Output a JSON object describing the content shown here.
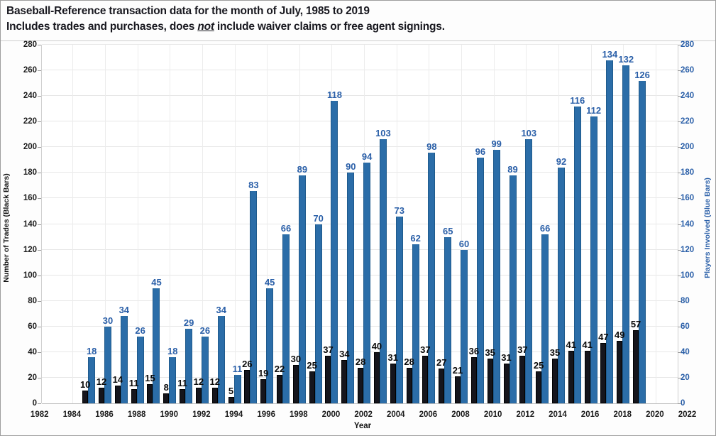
{
  "title": "Baseball-Reference transaction data for the month of July, 1985 to 2019",
  "subtitle": {
    "prefix": "Includes trades and purchases, does ",
    "emphasis": "not",
    "suffix": " include waiver claims or free agent signings."
  },
  "chart_data": {
    "type": "bar",
    "title": "Baseball-Reference transaction data for the month of July, 1985 to 2019",
    "subtitle": "Includes trades and purchases, does not include waiver claims or free agent signings.",
    "xlabel": "Year",
    "ylabel_left": "Number of Trades (Black Bars)",
    "ylabel_right": "Players Involved (Blue Bars)",
    "ylim_left": [
      0,
      280
    ],
    "ylim_right": [
      0,
      280
    ],
    "ytick_step": 20,
    "grid": true,
    "legend": "none",
    "xticks": [
      1982,
      1984,
      1986,
      1988,
      1990,
      1992,
      1994,
      1996,
      1998,
      2000,
      2002,
      2004,
      2006,
      2008,
      2010,
      2012,
      2014,
      2016,
      2018,
      2020,
      2022
    ],
    "categories": [
      1985,
      1986,
      1987,
      1988,
      1989,
      1990,
      1991,
      1992,
      1993,
      1994,
      1995,
      1996,
      1997,
      1998,
      1999,
      2000,
      2001,
      2002,
      2003,
      2004,
      2005,
      2006,
      2007,
      2008,
      2009,
      2010,
      2011,
      2012,
      2013,
      2014,
      2015,
      2016,
      2017,
      2018,
      2019
    ],
    "series": [
      {
        "name": "Number of Trades (Black Bars)",
        "color": "#15151c",
        "values": [
          10,
          12,
          14,
          11,
          15,
          8,
          11,
          12,
          12,
          5,
          26,
          19,
          22,
          30,
          25,
          37,
          34,
          28,
          40,
          31,
          28,
          37,
          27,
          21,
          36,
          35,
          31,
          37,
          25,
          35,
          41,
          41,
          47,
          49,
          57
        ]
      },
      {
        "name": "Players Involved (Blue Bars)",
        "color": "#2b6da8",
        "values": [
          18,
          30,
          34,
          26,
          45,
          18,
          29,
          26,
          34,
          11,
          83,
          45,
          66,
          89,
          70,
          118,
          90,
          94,
          103,
          73,
          62,
          98,
          65,
          60,
          96,
          99,
          89,
          103,
          66,
          92,
          116,
          112,
          134,
          132,
          126
        ],
        "drawn_pixel_scale_vs_axis": 2
      }
    ]
  },
  "colors": {
    "accent_blue_bar": "#2b6da8",
    "accent_blue_text": "#2a5fa8",
    "black_bar": "#15151c",
    "gridline": "#e7e7e7"
  }
}
